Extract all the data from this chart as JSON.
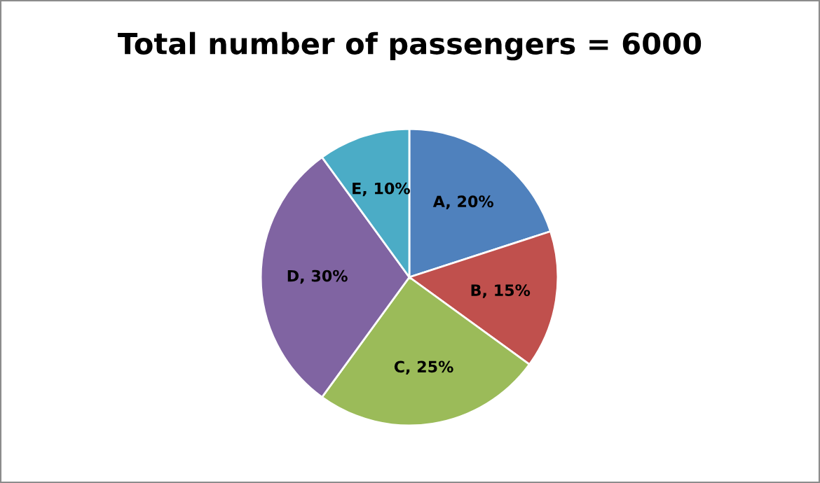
{
  "chart_data": {
    "type": "pie",
    "title": "Total number of passengers = 6000",
    "categories": [
      "A",
      "B",
      "C",
      "D",
      "E"
    ],
    "values": [
      20,
      15,
      25,
      30,
      10
    ],
    "colors": [
      "#4f81bd",
      "#c0504d",
      "#9bbb59",
      "#8064a2",
      "#4bacc6"
    ],
    "value_labels": [
      "20%",
      "15%",
      "25%",
      "30%",
      "10%"
    ]
  }
}
